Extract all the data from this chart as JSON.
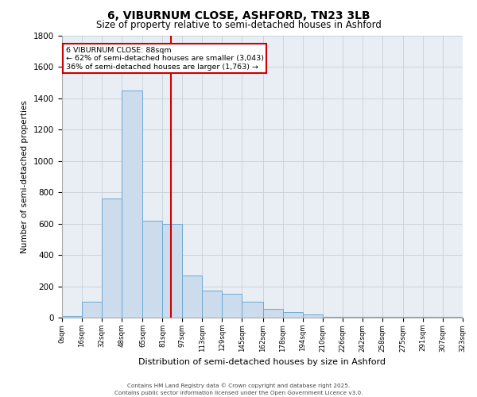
{
  "title_line1": "6, VIBURNUM CLOSE, ASHFORD, TN23 3LB",
  "title_line2": "Size of property relative to semi-detached houses in Ashford",
  "xlabel": "Distribution of semi-detached houses by size in Ashford",
  "ylabel": "Number of semi-detached properties",
  "bins": [
    0,
    16,
    32,
    48,
    65,
    81,
    97,
    113,
    129,
    145,
    162,
    178,
    194,
    210,
    226,
    242,
    258,
    275,
    291,
    307,
    323
  ],
  "bin_labels": [
    "0sqm",
    "16sqm",
    "32sqm",
    "48sqm",
    "65sqm",
    "81sqm",
    "97sqm",
    "113sqm",
    "129sqm",
    "145sqm",
    "162sqm",
    "178sqm",
    "194sqm",
    "210sqm",
    "226sqm",
    "242sqm",
    "258sqm",
    "275sqm",
    "291sqm",
    "307sqm",
    "323sqm"
  ],
  "values": [
    8,
    100,
    760,
    1450,
    620,
    600,
    270,
    170,
    150,
    100,
    55,
    35,
    20,
    5,
    5,
    5,
    5,
    5,
    5,
    5
  ],
  "bar_color": "#ccdcec",
  "bar_edgecolor": "#6aaad4",
  "grid_color": "#c8d0d8",
  "background_color": "#e8eef4",
  "marker_value": 88,
  "annotation_title": "6 VIBURNUM CLOSE: 88sqm",
  "annotation_line1": "← 62% of semi-detached houses are smaller (3,043)",
  "annotation_line2": "36% of semi-detached houses are larger (1,763) →",
  "vline_color": "#cc0000",
  "annotation_box_edgecolor": "#cc0000",
  "ylim": [
    0,
    1800
  ],
  "yticks": [
    0,
    200,
    400,
    600,
    800,
    1000,
    1200,
    1400,
    1600,
    1800
  ],
  "footer_line1": "Contains HM Land Registry data © Crown copyright and database right 2025.",
  "footer_line2": "Contains public sector information licensed under the Open Government Licence v3.0."
}
